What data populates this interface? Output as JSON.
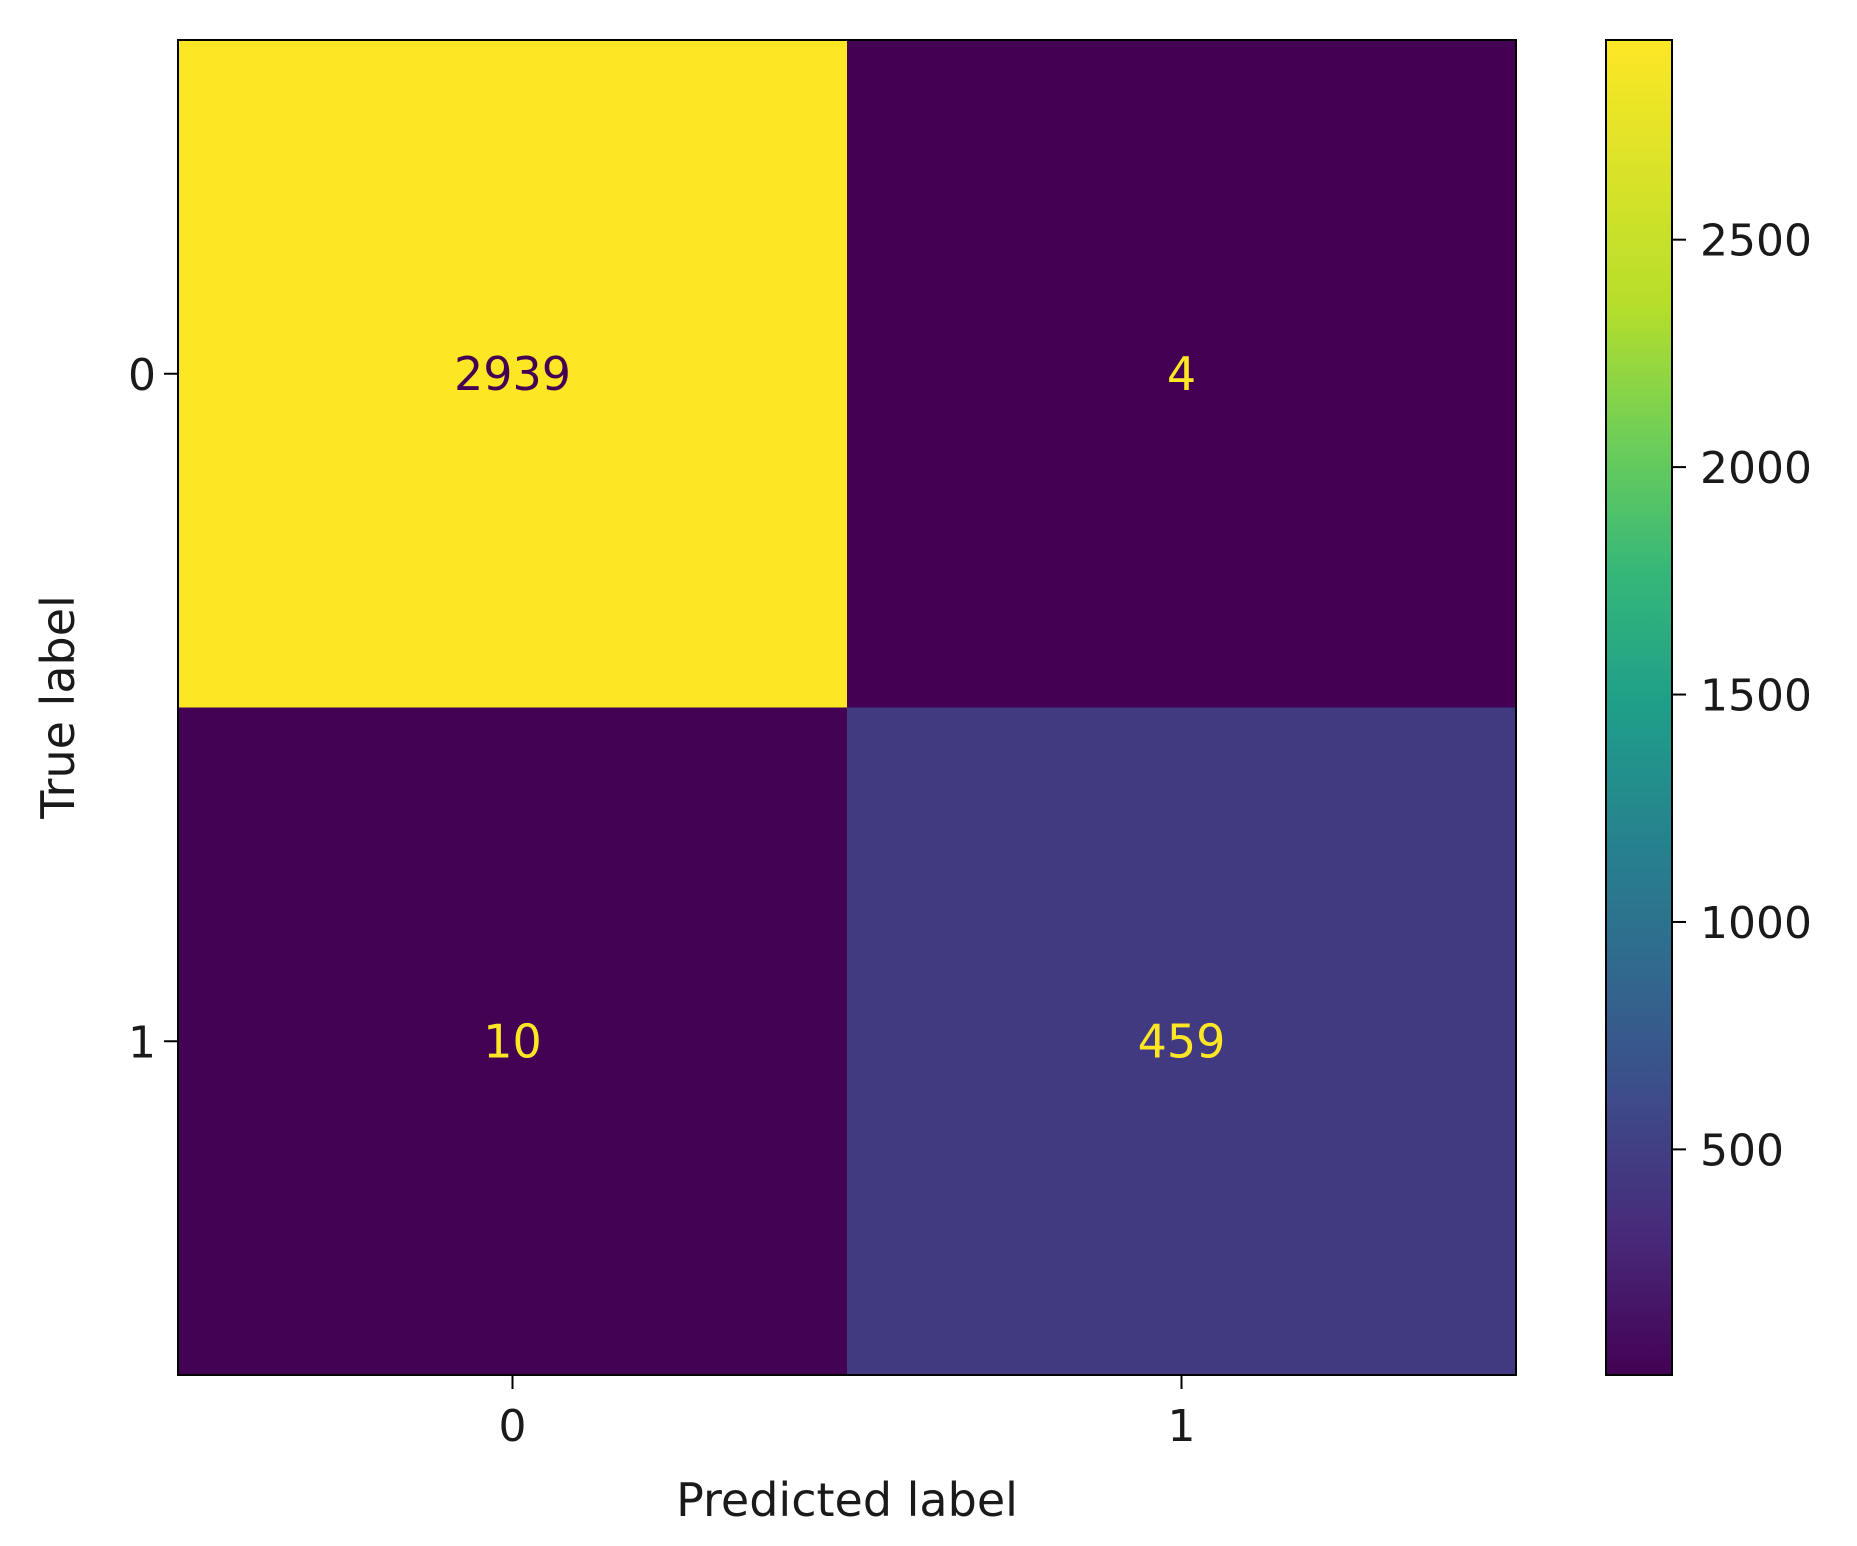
{
  "chart_data": {
    "type": "heatmap",
    "title": "",
    "xlabel": "Predicted label",
    "ylabel": "True label",
    "x_categories": [
      "0",
      "1"
    ],
    "y_categories": [
      "0",
      "1"
    ],
    "matrix": [
      [
        2939,
        4
      ],
      [
        10,
        459
      ]
    ],
    "colormap": "viridis",
    "colorbar": {
      "min": 4,
      "max": 2939,
      "ticks": [
        500,
        1000,
        1500,
        2000,
        2500
      ],
      "tick_labels": [
        "500",
        "1000",
        "1500",
        "2000",
        "2500"
      ]
    },
    "text_color_on_dark": "#fde725",
    "text_color_on_light": "#440154",
    "grid": false
  }
}
